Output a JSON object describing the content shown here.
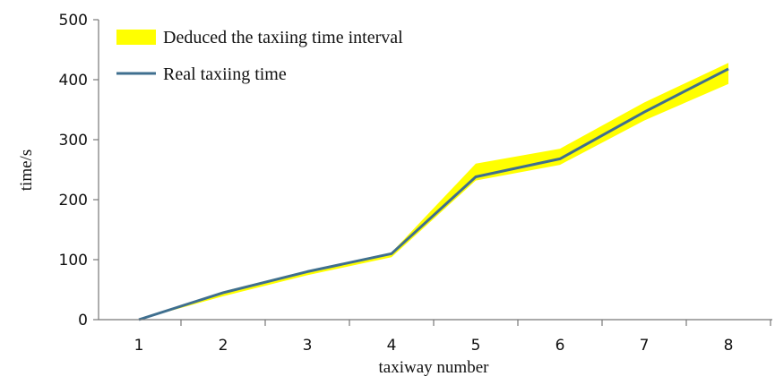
{
  "chart_data": {
    "type": "line",
    "xlabel": "taxiway number",
    "ylabel": "time/s",
    "x": [
      1,
      2,
      3,
      4,
      5,
      6,
      7,
      8
    ],
    "x_tick_labels": [
      "1",
      "2",
      "3",
      "4",
      "5",
      "6",
      "7",
      "8"
    ],
    "ylim": [
      0,
      500
    ],
    "y_ticks": [
      0,
      100,
      200,
      300,
      400,
      500
    ],
    "y_tick_labels": [
      "0",
      "100",
      "200",
      "300",
      "400",
      "500"
    ],
    "grid": false,
    "legend_position": "top-left",
    "band": {
      "name": "Deduced the taxiing time interval",
      "color": "#ffff00",
      "lower": [
        0,
        39,
        74,
        104,
        232,
        258,
        332,
        393
      ],
      "upper": [
        0,
        47,
        82,
        112,
        260,
        285,
        362,
        428
      ]
    },
    "series": [
      {
        "name": "Real taxiing time",
        "color": "#3f6f8f",
        "values": [
          0,
          45,
          80,
          110,
          238,
          268,
          346,
          418
        ]
      }
    ]
  }
}
